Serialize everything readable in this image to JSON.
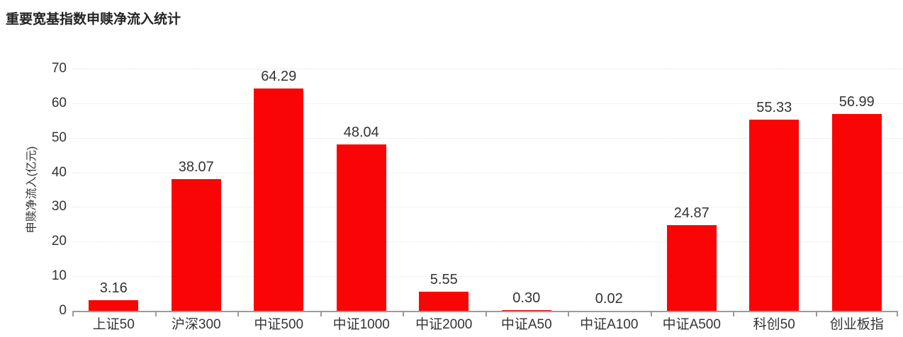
{
  "title": "重要宽基指数申赎净流入统计",
  "colors": {
    "background": "#FFFFFF",
    "bar": "#FA0505",
    "axis": "#9B9B9B",
    "gridline": "#E4E4E4",
    "text": "#333333",
    "title_text": "#252423"
  },
  "chart_data": {
    "type": "bar",
    "title": "重要宽基指数申赎净流入统计",
    "categories": [
      "上证50",
      "沪深300",
      "中证500",
      "中证1000",
      "中证2000",
      "中证A50",
      "中证A100",
      "中证A500",
      "科创50",
      "创业板指"
    ],
    "values": [
      3.16,
      38.07,
      64.29,
      48.04,
      5.55,
      0.3,
      0.02,
      24.87,
      55.33,
      56.99
    ],
    "value_labels": [
      "3.16",
      "38.07",
      "64.29",
      "48.04",
      "5.55",
      "0.30",
      "0.02",
      "24.87",
      "55.33",
      "56.99"
    ],
    "xlabel": "",
    "ylabel": "申赎净流入(亿元)",
    "ylim": [
      0,
      70
    ],
    "yticks": [
      0,
      10,
      20,
      30,
      40,
      50,
      60,
      70
    ],
    "grid": true,
    "grid_style": "dotted",
    "legend": false,
    "bar_color": "#FA0505"
  }
}
